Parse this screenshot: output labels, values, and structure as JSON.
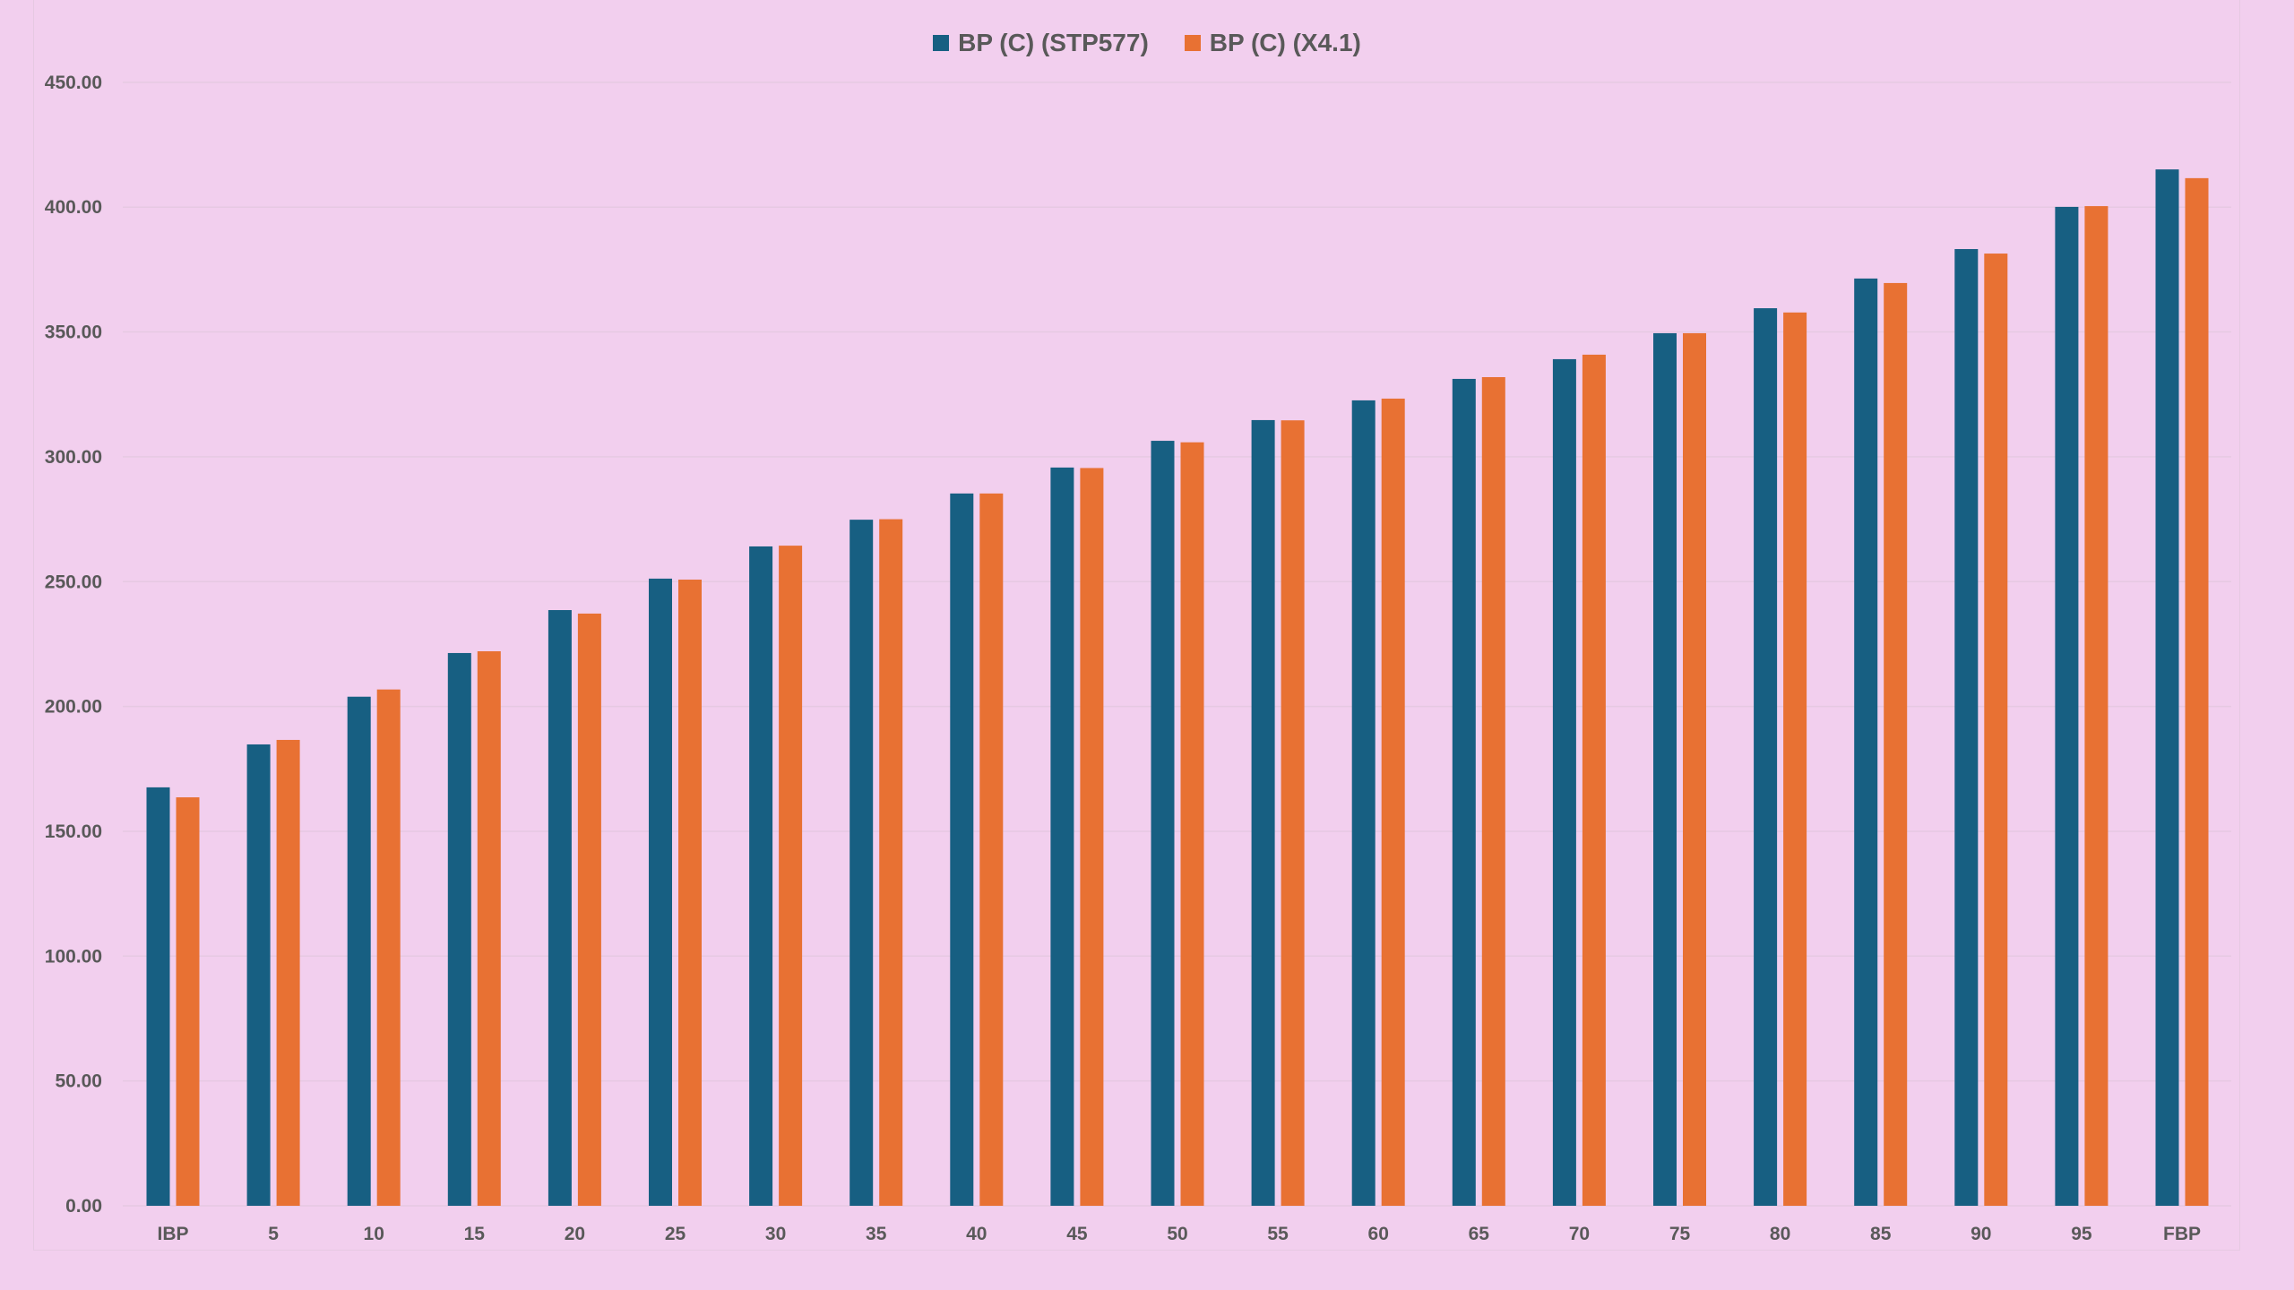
{
  "chart_data": {
    "type": "bar",
    "title": "",
    "xlabel": "",
    "ylabel": "",
    "ylim": [
      0,
      450
    ],
    "yticks": [
      0,
      50,
      100,
      150,
      200,
      250,
      300,
      350,
      400,
      450
    ],
    "ytick_labels": [
      "0.00",
      "50.00",
      "100.00",
      "150.00",
      "200.00",
      "250.00",
      "300.00",
      "350.00",
      "400.00",
      "450.00"
    ],
    "grid": true,
    "legend_position": "top",
    "categories": [
      "IBP",
      "5",
      "10",
      "15",
      "20",
      "25",
      "30",
      "35",
      "40",
      "45",
      "50",
      "55",
      "60",
      "65",
      "70",
      "75",
      "80",
      "85",
      "90",
      "95",
      "FBP"
    ],
    "series": [
      {
        "name": "BP (C) (STP577)",
        "color": "#175f82",
        "values": [
          167.6,
          184.8,
          203.9,
          221.4,
          238.6,
          251.2,
          264.1,
          274.8,
          285.3,
          295.7,
          306.4,
          314.7,
          322.6,
          331.2,
          339.1,
          349.5,
          359.5,
          371.4,
          383.2,
          400.1,
          415.1
        ]
      },
      {
        "name": "BP (C) (X4.1)",
        "color": "#e87133",
        "values": [
          163.6,
          186.6,
          206.8,
          222.1,
          237.2,
          250.8,
          264.4,
          275.0,
          285.3,
          295.5,
          305.8,
          314.6,
          323.3,
          331.9,
          340.9,
          349.5,
          357.8,
          369.6,
          381.4,
          400.4,
          411.6
        ]
      }
    ]
  },
  "legend": {
    "items": [
      {
        "label": "BP (C) (STP577)",
        "color": "#175f82"
      },
      {
        "label": "BP (C) (X4.1)",
        "color": "#e87133"
      }
    ]
  },
  "colors": {
    "background": "#f2cfee",
    "text": "#595959",
    "gridline": "#e6c9e2"
  }
}
